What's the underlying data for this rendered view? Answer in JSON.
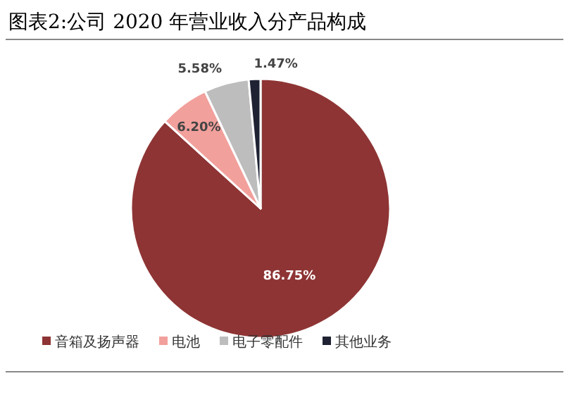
{
  "chart_data": {
    "type": "pie",
    "title": "图表2:公司 2020 年营业收入分产品构成",
    "categories": [
      "音箱及扬声器",
      "电池",
      "电子零配件",
      "其他业务"
    ],
    "values": [
      86.75,
      6.2,
      5.58,
      1.47
    ],
    "value_labels": [
      "86.75%",
      "6.20%",
      "5.58%",
      "1.47%"
    ],
    "colors": [
      "#8e3434",
      "#f2a09c",
      "#bdbdbd",
      "#1f2233"
    ],
    "legend": "bottom"
  }
}
